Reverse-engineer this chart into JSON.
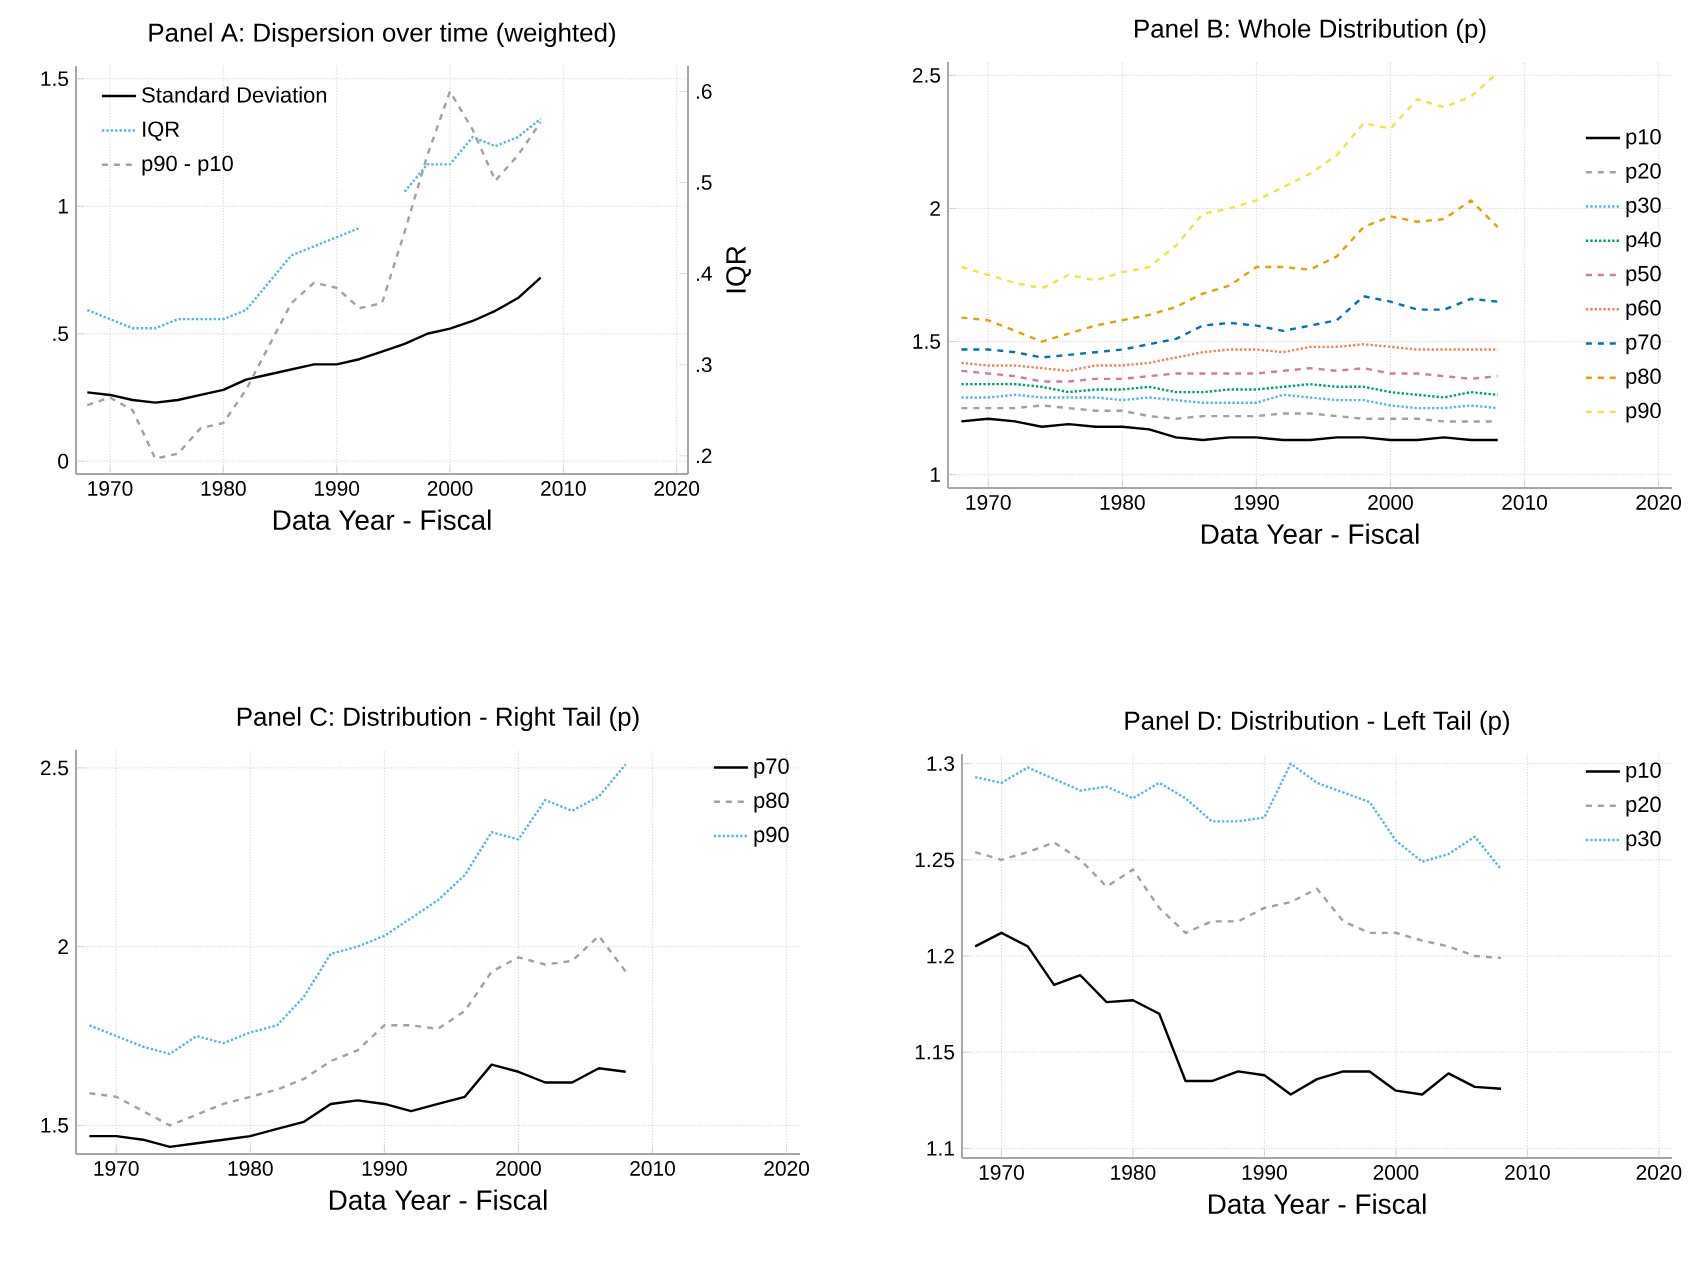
{
  "chart_data": [
    {
      "type": "line",
      "title": "Panel A: Dispersion over time (weighted)",
      "xlabel": "Data Year - Fiscal",
      "y2label": "IQR",
      "x": [
        1968,
        1970,
        1972,
        1974,
        1976,
        1978,
        1980,
        1982,
        1984,
        1986,
        1988,
        1990,
        1992,
        1994,
        1996,
        1998,
        2000,
        2002,
        2004,
        2006,
        2008
      ],
      "xlim": [
        1967,
        2021
      ],
      "xticks": [
        1970,
        1980,
        1990,
        2000,
        2010,
        2020
      ],
      "ylim": [
        -0.05,
        1.55
      ],
      "yticks": [
        0,
        {
          "value": 0.5,
          "label": ".5"
        },
        1,
        1.5
      ],
      "y2lim": [
        0.18,
        0.628
      ],
      "y2ticks": [
        {
          "value": 0.2,
          "label": ".2"
        },
        {
          "value": 0.3,
          "label": ".3"
        },
        {
          "value": 0.4,
          "label": ".4"
        },
        {
          "value": 0.5,
          "label": ".5"
        },
        {
          "value": 0.6,
          "label": ".6"
        }
      ],
      "grid": true,
      "legend": "top left",
      "series": [
        {
          "name": "Standard Deviation",
          "color": "#000000",
          "line_style": "solid",
          "values": [
            0.27,
            0.26,
            0.24,
            0.23,
            0.24,
            0.26,
            0.28,
            0.32,
            0.34,
            0.36,
            0.38,
            0.38,
            0.4,
            0.43,
            0.46,
            0.5,
            0.52,
            0.55,
            0.59,
            0.64,
            0.72
          ]
        },
        {
          "name": "IQR",
          "color": "#56b4e9",
          "line_style": "dotted",
          "axis": "y2",
          "values": [
            0.36,
            0.35,
            0.34,
            0.34,
            0.35,
            0.35,
            0.35,
            0.36,
            0.39,
            0.42,
            0.43,
            0.44,
            0.45,
            null,
            0.49,
            0.52,
            0.52,
            0.55,
            0.54,
            0.55,
            0.57
          ]
        },
        {
          "name": "p90 - p10",
          "color": "#a0a0a0",
          "line_style": "dashed",
          "values": [
            0.22,
            0.25,
            0.2,
            0.01,
            0.03,
            0.13,
            0.15,
            0.28,
            0.45,
            0.62,
            0.7,
            0.68,
            0.6,
            0.62,
            0.9,
            1.2,
            1.45,
            1.3,
            1.1,
            1.2,
            1.33
          ]
        }
      ]
    },
    {
      "type": "line",
      "title": "Panel B: Whole Distribution (p)",
      "xlabel": "Data Year - Fiscal",
      "x": [
        1968,
        1970,
        1972,
        1974,
        1976,
        1978,
        1980,
        1982,
        1984,
        1986,
        1988,
        1990,
        1992,
        1994,
        1996,
        1998,
        2000,
        2002,
        2004,
        2006,
        2008
      ],
      "xlim": [
        1967,
        2021
      ],
      "xticks": [
        1970,
        1980,
        1990,
        2000,
        2010,
        2020
      ],
      "ylim": [
        0.95,
        2.55
      ],
      "yticks": [
        1,
        1.5,
        2,
        2.5
      ],
      "grid": true,
      "legend": "right",
      "series": [
        {
          "name": "p10",
          "color": "#000000",
          "line_style": "solid",
          "values": [
            1.2,
            1.21,
            1.2,
            1.18,
            1.19,
            1.18,
            1.18,
            1.17,
            1.14,
            1.13,
            1.14,
            1.14,
            1.13,
            1.13,
            1.14,
            1.14,
            1.13,
            1.13,
            1.14,
            1.13,
            1.13
          ]
        },
        {
          "name": "p20",
          "color": "#a0a0a0",
          "line_style": "dashed",
          "values": [
            1.25,
            1.25,
            1.25,
            1.26,
            1.25,
            1.24,
            1.24,
            1.22,
            1.21,
            1.22,
            1.22,
            1.22,
            1.23,
            1.23,
            1.22,
            1.21,
            1.21,
            1.21,
            1.2,
            1.2,
            1.2
          ]
        },
        {
          "name": "p30",
          "color": "#56b4e9",
          "line_style": "dotted",
          "values": [
            1.29,
            1.29,
            1.3,
            1.29,
            1.29,
            1.29,
            1.28,
            1.29,
            1.28,
            1.27,
            1.27,
            1.27,
            1.3,
            1.29,
            1.28,
            1.28,
            1.26,
            1.25,
            1.25,
            1.26,
            1.25
          ]
        },
        {
          "name": "p40",
          "color": "#009e73",
          "line_style": "dotted",
          "values": [
            1.34,
            1.34,
            1.34,
            1.33,
            1.31,
            1.32,
            1.32,
            1.33,
            1.31,
            1.31,
            1.32,
            1.32,
            1.33,
            1.34,
            1.33,
            1.33,
            1.31,
            1.3,
            1.29,
            1.31,
            1.3
          ]
        },
        {
          "name": "p50",
          "color": "#cc79a7",
          "line_style": "dashed",
          "values": [
            1.39,
            1.38,
            1.37,
            1.35,
            1.35,
            1.36,
            1.36,
            1.37,
            1.38,
            1.38,
            1.38,
            1.38,
            1.39,
            1.4,
            1.39,
            1.4,
            1.38,
            1.38,
            1.37,
            1.36,
            1.37
          ]
        },
        {
          "name": "p60",
          "color": "#e5895a",
          "line_style": "dotted",
          "values": [
            1.42,
            1.41,
            1.41,
            1.4,
            1.39,
            1.41,
            1.41,
            1.42,
            1.44,
            1.46,
            1.47,
            1.47,
            1.46,
            1.48,
            1.48,
            1.49,
            1.48,
            1.47,
            1.47,
            1.47,
            1.47
          ]
        },
        {
          "name": "p70",
          "color": "#0072b2",
          "line_style": "dashed",
          "values": [
            1.47,
            1.47,
            1.46,
            1.44,
            1.45,
            1.46,
            1.47,
            1.49,
            1.51,
            1.56,
            1.57,
            1.56,
            1.54,
            1.56,
            1.58,
            1.67,
            1.65,
            1.62,
            1.62,
            1.66,
            1.65
          ]
        },
        {
          "name": "p80",
          "color": "#e69f00",
          "line_style": "dashed",
          "values": [
            1.59,
            1.58,
            1.54,
            1.5,
            1.53,
            1.56,
            1.58,
            1.6,
            1.63,
            1.68,
            1.71,
            1.78,
            1.78,
            1.77,
            1.82,
            1.93,
            1.97,
            1.95,
            1.96,
            2.03,
            1.93
          ]
        },
        {
          "name": "p90",
          "color": "#f0e442",
          "line_style": "dashed",
          "values": [
            1.78,
            1.75,
            1.72,
            1.7,
            1.75,
            1.73,
            1.76,
            1.78,
            1.86,
            1.98,
            2.0,
            2.03,
            2.08,
            2.13,
            2.2,
            2.32,
            2.3,
            2.41,
            2.38,
            2.42,
            2.51
          ]
        }
      ]
    },
    {
      "type": "line",
      "title": "Panel C: Distribution - Right Tail (p)",
      "xlabel": "Data Year - Fiscal",
      "x": [
        1968,
        1970,
        1972,
        1974,
        1976,
        1978,
        1980,
        1982,
        1984,
        1986,
        1988,
        1990,
        1992,
        1994,
        1996,
        1998,
        2000,
        2002,
        2004,
        2006,
        2008
      ],
      "xlim": [
        1967,
        2021
      ],
      "xticks": [
        1970,
        1980,
        1990,
        2000,
        2010,
        2020
      ],
      "ylim": [
        1.42,
        2.55
      ],
      "yticks": [
        1.5,
        2,
        2.5
      ],
      "grid": true,
      "legend": "top right",
      "series": [
        {
          "name": "p70",
          "color": "#000000",
          "line_style": "solid",
          "values": [
            1.47,
            1.47,
            1.46,
            1.44,
            1.45,
            1.46,
            1.47,
            1.49,
            1.51,
            1.56,
            1.57,
            1.56,
            1.54,
            1.56,
            1.58,
            1.67,
            1.65,
            1.62,
            1.62,
            1.66,
            1.65
          ]
        },
        {
          "name": "p80",
          "color": "#a0a0a0",
          "line_style": "dashed",
          "values": [
            1.59,
            1.58,
            1.54,
            1.5,
            1.53,
            1.56,
            1.58,
            1.6,
            1.63,
            1.68,
            1.71,
            1.78,
            1.78,
            1.77,
            1.82,
            1.93,
            1.97,
            1.95,
            1.96,
            2.03,
            1.93
          ]
        },
        {
          "name": "p90",
          "color": "#56b4e9",
          "line_style": "dotted",
          "values": [
            1.78,
            1.75,
            1.72,
            1.7,
            1.75,
            1.73,
            1.76,
            1.78,
            1.86,
            1.98,
            2.0,
            2.03,
            2.08,
            2.13,
            2.2,
            2.32,
            2.3,
            2.41,
            2.38,
            2.42,
            2.51
          ]
        }
      ]
    },
    {
      "type": "line",
      "title": "Panel D: Distribution - Left Tail (p)",
      "xlabel": "Data Year - Fiscal",
      "x": [
        1968,
        1970,
        1972,
        1974,
        1976,
        1978,
        1980,
        1982,
        1984,
        1986,
        1988,
        1990,
        1992,
        1994,
        1996,
        1998,
        2000,
        2002,
        2004,
        2006,
        2008
      ],
      "xlim": [
        1967,
        2021
      ],
      "xticks": [
        1970,
        1980,
        1990,
        2000,
        2010,
        2020
      ],
      "ylim": [
        1.095,
        1.305
      ],
      "yticks": [
        1.1,
        1.15,
        1.2,
        1.25,
        1.3
      ],
      "grid": true,
      "legend": "top right",
      "series": [
        {
          "name": "p10",
          "color": "#000000",
          "line_style": "solid",
          "values": [
            1.205,
            1.212,
            1.205,
            1.185,
            1.19,
            1.176,
            1.177,
            1.17,
            1.135,
            1.135,
            1.14,
            1.138,
            1.128,
            1.136,
            1.14,
            1.14,
            1.13,
            1.128,
            1.139,
            1.132,
            1.131
          ]
        },
        {
          "name": "p20",
          "color": "#a0a0a0",
          "line_style": "dashed",
          "values": [
            1.254,
            1.25,
            1.254,
            1.259,
            1.25,
            1.236,
            1.245,
            1.225,
            1.212,
            1.218,
            1.218,
            1.225,
            1.228,
            1.235,
            1.218,
            1.212,
            1.212,
            1.208,
            1.205,
            1.2,
            1.199
          ]
        },
        {
          "name": "p30",
          "color": "#56b4e9",
          "line_style": "dotted",
          "values": [
            1.293,
            1.29,
            1.298,
            1.292,
            1.286,
            1.288,
            1.282,
            1.29,
            1.282,
            1.27,
            1.27,
            1.272,
            1.3,
            1.29,
            1.285,
            1.28,
            1.26,
            1.249,
            1.253,
            1.262,
            1.245
          ]
        }
      ]
    }
  ]
}
